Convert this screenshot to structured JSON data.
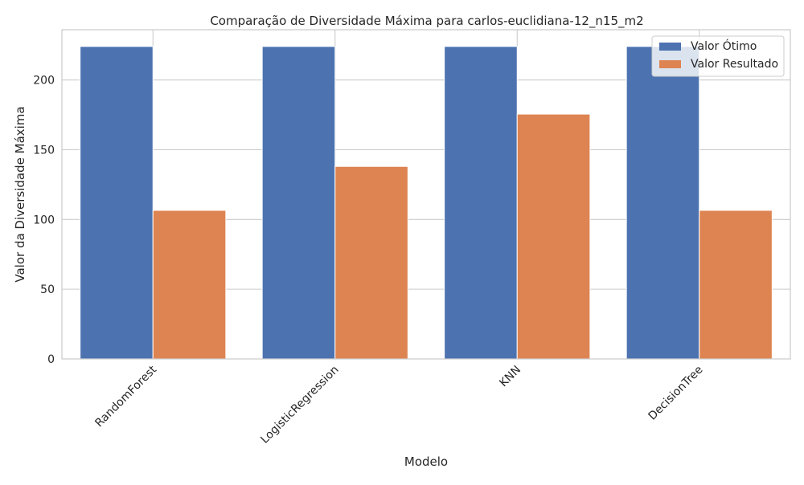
{
  "chart_data": {
    "type": "bar",
    "title": "Comparação de Diversidade Máxima para carlos-euclidiana-12_n15_m2",
    "xlabel": "Modelo",
    "ylabel": "Valor da Diversidade Máxima",
    "categories": [
      "RandomForest",
      "LogisticRegression",
      "KNN",
      "DecisionTree"
    ],
    "series": [
      {
        "name": "Valor Ótimo",
        "values": [
          224,
          224,
          224,
          224
        ],
        "color": "#4c72b0"
      },
      {
        "name": "Valor Resultado",
        "values": [
          106.5,
          138,
          175.5,
          106.5
        ],
        "color": "#dd8452"
      }
    ],
    "ylim": [
      0,
      236
    ],
    "yticks": [
      0,
      50,
      100,
      150,
      200
    ],
    "grid": true,
    "legend_position": "top-right",
    "grid_color": "#cccccc",
    "background": "#ffffff"
  }
}
